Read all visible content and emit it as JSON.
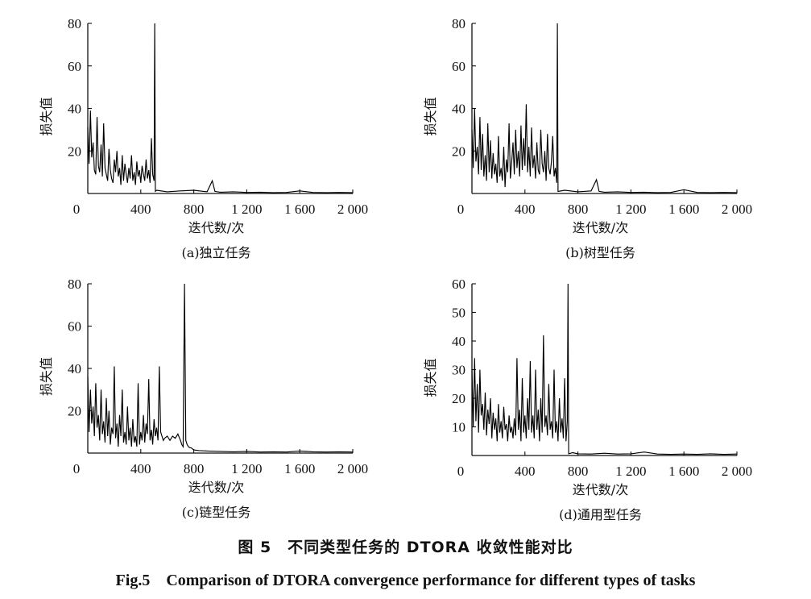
{
  "figure": {
    "title_cn": "图 5　不同类型任务的 DTORA 收敛性能对比",
    "title_en": "Fig.5　Comparison of DTORA convergence performance for different types of tasks"
  },
  "chart_data": [
    {
      "type": "line",
      "caption": "(a)独立任务",
      "xlabel": "迭代数/次",
      "ylabel": "损失值",
      "xlim": [
        0,
        2000
      ],
      "ylim": [
        0,
        80
      ],
      "xticks": [
        0,
        400,
        800,
        1200,
        1600,
        2000
      ],
      "xtick_labels": [
        "0",
        "400",
        "800",
        "1 200",
        "1 600",
        "2 000"
      ],
      "yticks": [
        20,
        40,
        60,
        80
      ],
      "ytick_labels": [
        "20",
        "40",
        "60",
        "80"
      ],
      "grid": false,
      "series": [
        {
          "x": [
            0,
            10,
            20,
            30,
            40,
            50,
            60,
            70,
            80,
            90,
            100,
            110,
            120,
            130,
            140,
            150,
            160,
            170,
            180,
            190,
            200,
            210,
            220,
            230,
            240,
            250,
            260,
            270,
            280,
            290,
            300,
            310,
            320,
            330,
            340,
            350,
            360,
            370,
            380,
            390,
            400,
            410,
            420,
            430,
            440,
            450,
            460,
            470,
            480,
            490,
            500,
            505,
            510,
            520,
            600,
            700,
            800,
            900,
            940,
            960,
            1000,
            1100,
            1200,
            1300,
            1400,
            1500,
            1600,
            1700,
            1800,
            1900,
            2000
          ],
          "y": [
            31,
            14,
            39,
            17,
            24,
            11,
            9,
            36,
            13,
            10,
            23,
            8,
            33,
            12,
            9,
            6,
            21,
            11,
            7,
            5,
            16,
            10,
            20,
            8,
            12,
            4,
            18,
            6,
            14,
            9,
            5,
            12,
            7,
            18,
            6,
            10,
            4,
            15,
            8,
            11,
            5,
            13,
            9,
            6,
            16,
            7,
            11,
            5,
            26,
            9,
            6,
            80,
            1,
            1.5,
            0.8,
            1.2,
            1.5,
            0.8,
            6,
            1,
            0.6,
            0.8,
            0.5,
            0.6,
            0.4,
            0.5,
            1.2,
            0.5,
            0.4,
            0.5,
            0.4
          ]
        }
      ]
    },
    {
      "type": "line",
      "caption": "(b)树型任务",
      "xlabel": "迭代数/次",
      "ylabel": "损失值",
      "xlim": [
        0,
        2000
      ],
      "ylim": [
        0,
        80
      ],
      "xticks": [
        0,
        400,
        800,
        1200,
        1600,
        2000
      ],
      "xtick_labels": [
        "0",
        "400",
        "800",
        "1 200",
        "1 600",
        "2 000"
      ],
      "yticks": [
        20,
        40,
        60,
        80
      ],
      "ytick_labels": [
        "20",
        "40",
        "60",
        "80"
      ],
      "grid": false,
      "series": [
        {
          "x": [
            0,
            10,
            20,
            30,
            40,
            50,
            60,
            70,
            80,
            90,
            100,
            110,
            120,
            130,
            140,
            150,
            160,
            170,
            180,
            190,
            200,
            210,
            220,
            230,
            240,
            250,
            260,
            270,
            280,
            290,
            300,
            310,
            320,
            330,
            340,
            350,
            360,
            370,
            380,
            390,
            400,
            410,
            420,
            430,
            440,
            450,
            460,
            470,
            480,
            490,
            500,
            510,
            520,
            530,
            540,
            550,
            560,
            570,
            580,
            590,
            600,
            610,
            620,
            630,
            640,
            645,
            650,
            700,
            800,
            900,
            940,
            960,
            1000,
            1100,
            1200,
            1300,
            1400,
            1500,
            1600,
            1700,
            1800,
            1900,
            2000
          ],
          "y": [
            30,
            12,
            40,
            15,
            22,
            9,
            36,
            11,
            28,
            8,
            18,
            6,
            33,
            10,
            25,
            7,
            19,
            9,
            14,
            5,
            27,
            8,
            12,
            6,
            22,
            3,
            16,
            10,
            33,
            7,
            15,
            24,
            9,
            30,
            12,
            20,
            8,
            32,
            11,
            26,
            13,
            42,
            10,
            22,
            8,
            31,
            12,
            18,
            7,
            24,
            11,
            9,
            30,
            14,
            10,
            20,
            6,
            28,
            12,
            9,
            15,
            27,
            8,
            12,
            5,
            80,
            1,
            1.5,
            0.8,
            1.2,
            6.5,
            1,
            0.6,
            0.8,
            0.5,
            0.6,
            0.4,
            0.5,
            1.8,
            0.5,
            0.4,
            0.5,
            0.4
          ]
        }
      ]
    },
    {
      "type": "line",
      "caption": "(c)链型任务",
      "xlabel": "迭代数/次",
      "ylabel": "损失值",
      "xlim": [
        0,
        2000
      ],
      "ylim": [
        0,
        80
      ],
      "xticks": [
        0,
        400,
        800,
        1200,
        1600,
        2000
      ],
      "xtick_labels": [
        "0",
        "400",
        "800",
        "1 200",
        "1 600",
        "2 000"
      ],
      "yticks": [
        20,
        40,
        60,
        80
      ],
      "ytick_labels": [
        "20",
        "40",
        "60",
        "80"
      ],
      "grid": false,
      "series": [
        {
          "x": [
            0,
            10,
            20,
            30,
            40,
            50,
            60,
            70,
            80,
            90,
            100,
            110,
            120,
            130,
            140,
            150,
            160,
            170,
            180,
            190,
            200,
            210,
            220,
            230,
            240,
            250,
            260,
            270,
            280,
            290,
            300,
            310,
            320,
            330,
            340,
            350,
            360,
            370,
            380,
            390,
            400,
            410,
            420,
            430,
            440,
            450,
            460,
            470,
            480,
            490,
            500,
            510,
            520,
            530,
            540,
            550,
            560,
            570,
            580,
            600,
            620,
            640,
            660,
            680,
            700,
            710,
            720,
            730,
            740,
            750,
            760,
            770,
            780,
            800,
            840,
            900,
            1000,
            1100,
            1200,
            1300,
            1400,
            1500,
            1600,
            1700,
            1800,
            1900,
            2000
          ],
          "y": [
            36,
            10,
            30,
            14,
            22,
            8,
            33,
            12,
            18,
            6,
            30,
            9,
            15,
            5,
            26,
            8,
            20,
            4,
            12,
            9,
            41,
            7,
            14,
            3,
            18,
            8,
            30,
            5,
            10,
            4,
            22,
            6,
            12,
            3,
            16,
            5,
            8,
            3,
            33,
            4,
            10,
            6,
            18,
            5,
            14,
            9,
            35,
            6,
            11,
            4,
            16,
            8,
            12,
            6,
            41,
            10,
            8,
            6,
            7,
            8,
            6,
            8,
            7,
            9,
            6,
            4,
            3,
            80,
            6,
            4,
            3,
            2.5,
            2.5,
            1.5,
            1.2,
            1,
            0.8,
            0.6,
            0.8,
            0.5,
            0.6,
            0.5,
            1,
            0.6,
            0.5,
            0.6,
            0.5
          ]
        }
      ]
    },
    {
      "type": "line",
      "caption": "(d)通用型任务",
      "xlabel": "迭代数/次",
      "ylabel": "损失值",
      "xlim": [
        0,
        2000
      ],
      "ylim": [
        0,
        60
      ],
      "xticks": [
        0,
        400,
        800,
        1200,
        1600,
        2000
      ],
      "xtick_labels": [
        "0",
        "400",
        "800",
        "1 200",
        "1 600",
        "2 000"
      ],
      "yticks": [
        10,
        20,
        30,
        40,
        50,
        60
      ],
      "ytick_labels": [
        "10",
        "20",
        "30",
        "40",
        "50",
        "60"
      ],
      "grid": false,
      "series": [
        {
          "x": [
            0,
            10,
            20,
            30,
            40,
            50,
            60,
            70,
            80,
            90,
            100,
            110,
            120,
            130,
            140,
            150,
            160,
            170,
            180,
            190,
            200,
            210,
            220,
            230,
            240,
            250,
            260,
            270,
            280,
            290,
            300,
            310,
            320,
            330,
            340,
            350,
            360,
            370,
            380,
            390,
            400,
            410,
            420,
            430,
            440,
            450,
            460,
            470,
            480,
            490,
            500,
            510,
            520,
            530,
            540,
            550,
            560,
            570,
            580,
            590,
            600,
            610,
            620,
            630,
            640,
            650,
            660,
            670,
            680,
            690,
            700,
            710,
            720,
            725,
            730,
            760,
            800,
            900,
            1000,
            1100,
            1200,
            1300,
            1400,
            1500,
            1600,
            1700,
            1800,
            1900,
            2000
          ],
          "y": [
            30,
            10,
            34,
            12,
            25,
            8,
            30,
            14,
            18,
            9,
            22,
            7,
            16,
            11,
            20,
            6,
            15,
            9,
            13,
            5,
            18,
            8,
            12,
            6,
            17,
            9,
            11,
            5,
            14,
            8,
            10,
            6,
            13,
            7,
            34,
            9,
            16,
            5,
            27,
            8,
            14,
            6,
            20,
            9,
            33,
            8,
            14,
            6,
            30,
            9,
            16,
            5,
            20,
            8,
            42,
            10,
            14,
            7,
            25,
            9,
            12,
            6,
            30,
            8,
            12,
            5,
            20,
            8,
            13,
            6,
            27,
            5,
            12,
            60,
            0.6,
            1,
            0.6,
            0.5,
            0.8,
            0.5,
            0.6,
            1.2,
            0.5,
            0.4,
            0.5,
            0.4,
            0.6,
            0.4,
            0.5
          ]
        }
      ]
    }
  ]
}
